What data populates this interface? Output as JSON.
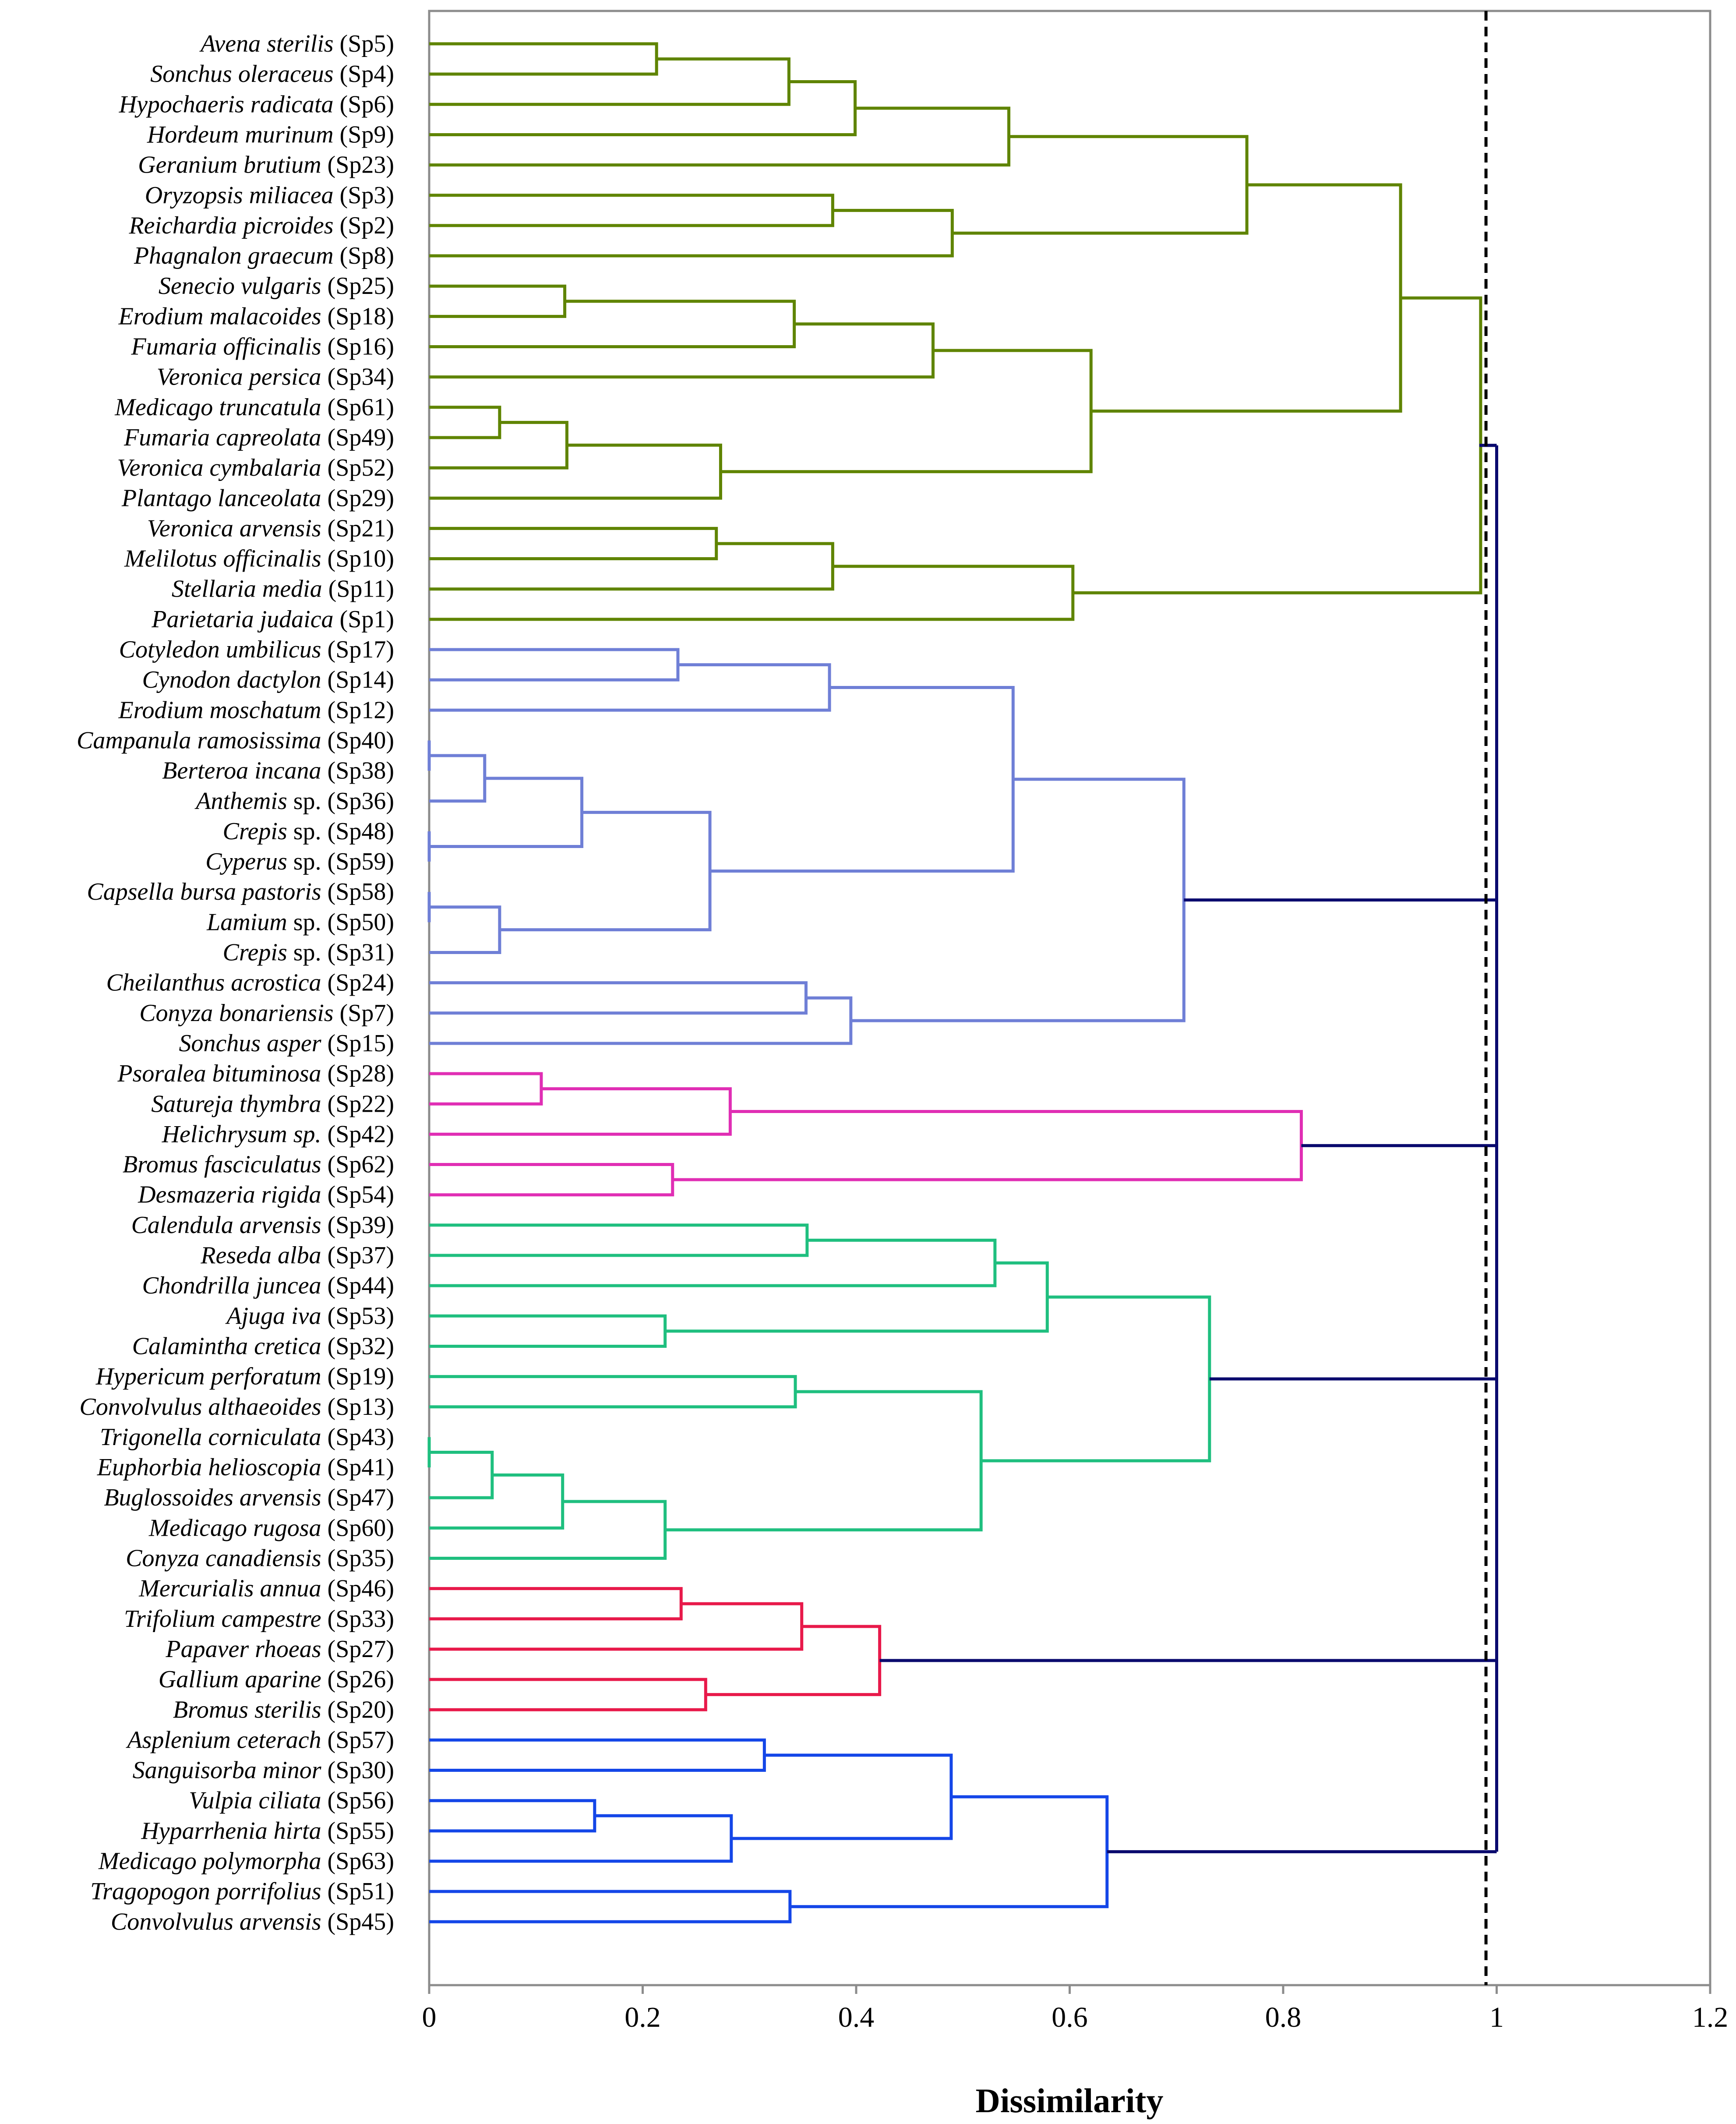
{
  "chart_data": {
    "type": "dendrogram",
    "xlabel": "Dissimilarity",
    "xlim": [
      0,
      1.2
    ],
    "xticks": [
      "0",
      "0.2",
      "0.4",
      "0.6",
      "0.8",
      "1",
      "1.2"
    ],
    "xtick_values": [
      0,
      0.2,
      0.4,
      0.6,
      0.8,
      1.0,
      1.2
    ],
    "cut_line": 0.99,
    "colors": {
      "green": "#5f8400",
      "lavender": "#6f7fd6",
      "magenta": "#e02eb4",
      "teal": "#1fbf7f",
      "red": "#e8194a",
      "blue": "#1446e8",
      "navy": "#0a0a6e",
      "axis": "#8c8c8c"
    },
    "leaves": [
      {
        "name": "Avena sterilis",
        "code": "(Sp5)"
      },
      {
        "name": "Sonchus oleraceus",
        "code": "(Sp4)"
      },
      {
        "name": "Hypochaeris radicata",
        "code": "(Sp6)"
      },
      {
        "name": "Hordeum murinum",
        "code": "(Sp9)"
      },
      {
        "name": "Geranium brutium",
        "code": "(Sp23)"
      },
      {
        "name": "Oryzopsis miliacea",
        "code": "(Sp3)"
      },
      {
        "name": "Reichardia picroides",
        "code": "(Sp2)"
      },
      {
        "name": "Phagnalon graecum",
        "code": "(Sp8)"
      },
      {
        "name": "Senecio vulgaris",
        "code": "(Sp25)"
      },
      {
        "name": "Erodium malacoides",
        "code": "(Sp18)"
      },
      {
        "name": "Fumaria officinalis",
        "code": "(Sp16)"
      },
      {
        "name": "Veronica persica",
        "code": "(Sp34)"
      },
      {
        "name": "Medicago truncatula",
        "code": "(Sp61)"
      },
      {
        "name": "Fumaria capreolata",
        "code": "(Sp49)"
      },
      {
        "name": "Veronica cymbalaria",
        "code": "(Sp52)"
      },
      {
        "name": "Plantago lanceolata",
        "code": "(Sp29)"
      },
      {
        "name": "Veronica arvensis",
        "code": "(Sp21)"
      },
      {
        "name": "Melilotus officinalis",
        "code": "(Sp10)"
      },
      {
        "name": "Stellaria media",
        "code": "(Sp11)"
      },
      {
        "name": "Parietaria judaica",
        "code": "(Sp1)"
      },
      {
        "name": "Cotyledon umbilicus",
        "code": "(Sp17)"
      },
      {
        "name": "Cynodon dactylon",
        "code": "(Sp14)"
      },
      {
        "name": "Erodium moschatum",
        "code": "(Sp12)"
      },
      {
        "name": "Campanula ramosissima",
        "code": "(Sp40)"
      },
      {
        "name": "Berteroa incana",
        "code": "(Sp38)"
      },
      {
        "name": "Anthemis",
        "suffix": " sp.",
        "code": "(Sp36)"
      },
      {
        "name": "Crepis",
        "suffix": " sp.",
        "code": "(Sp48)"
      },
      {
        "name": "Cyperus",
        "suffix": " sp.",
        "code": "(Sp59)"
      },
      {
        "name": "Capsella bursa pastoris",
        "code": "(Sp58)"
      },
      {
        "name": "Lamium",
        "suffix": " sp.",
        "code": "(Sp50)"
      },
      {
        "name": "Crepis",
        "suffix": " sp.",
        "code": "(Sp31)"
      },
      {
        "name": "Cheilanthus acrostica",
        "code": "(Sp24)"
      },
      {
        "name": "Conyza bonariensis",
        "code": "(Sp7)"
      },
      {
        "name": "Sonchus asper",
        "code": "(Sp15)"
      },
      {
        "name": "Psoralea bituminosa",
        "code": "(Sp28)"
      },
      {
        "name": "Satureja thymbra",
        "code": "(Sp22)"
      },
      {
        "name": "Helichrysum sp.",
        "code": "(Sp42)"
      },
      {
        "name": "Bromus fasciculatus",
        "code": "(Sp62)"
      },
      {
        "name": "Desmazeria rigida",
        "code": "(Sp54)"
      },
      {
        "name": "Calendula arvensis",
        "code": "(Sp39)"
      },
      {
        "name": "Reseda alba",
        "code": "(Sp37)"
      },
      {
        "name": "Chondrilla juncea",
        "code": "(Sp44)"
      },
      {
        "name": "Ajuga iva",
        "code": "(Sp53)"
      },
      {
        "name": "Calamintha cretica",
        "code": "(Sp32)"
      },
      {
        "name": "Hypericum perforatum",
        "code": "(Sp19)"
      },
      {
        "name": "Convolvulus althaeoides",
        "code": "(Sp13)"
      },
      {
        "name": "Trigonella corniculata",
        "code": "(Sp43)"
      },
      {
        "name": "Euphorbia helioscopia",
        "code": "(Sp41)"
      },
      {
        "name": "Buglossoides arvensis",
        "code": "(Sp47)"
      },
      {
        "name": "Medicago rugosa",
        "code": "(Sp60)"
      },
      {
        "name": "Conyza canadiensis",
        "code": "(Sp35)"
      },
      {
        "name": "Mercurialis annua",
        "code": "(Sp46)"
      },
      {
        "name": "Trifolium campestre",
        "code": "(Sp33)"
      },
      {
        "name": "Papaver rhoeas",
        "code": "(Sp27)"
      },
      {
        "name": "Gallium aparine",
        "code": "(Sp26)"
      },
      {
        "name": "Bromus sterilis",
        "code": "(Sp20)"
      },
      {
        "name": "Asplenium ceterach",
        "code": "(Sp57)"
      },
      {
        "name": "Sanguisorba minor",
        "code": "(Sp30)"
      },
      {
        "name": "Vulpia ciliata",
        "code": "(Sp56)"
      },
      {
        "name": "Hyparrhenia hirta",
        "code": "(Sp55)"
      },
      {
        "name": "Medicago polymorpha",
        "code": "(Sp63)"
      },
      {
        "name": "Tragopogon porrifolius",
        "code": "(Sp51)"
      },
      {
        "name": "Convolvulus arvensis",
        "code": "(Sp45)"
      }
    ],
    "merges": [
      {
        "id": "g1",
        "children": [
          0,
          1
        ],
        "height": 0.213,
        "color": "green"
      },
      {
        "id": "g2",
        "children": [
          "g1",
          2
        ],
        "height": 0.337,
        "color": "green"
      },
      {
        "id": "g3",
        "children": [
          "g2",
          3
        ],
        "height": 0.399,
        "color": "green"
      },
      {
        "id": "g4",
        "children": [
          "g3",
          4
        ],
        "height": 0.543,
        "color": "green"
      },
      {
        "id": "g5",
        "children": [
          5,
          6
        ],
        "height": 0.378,
        "color": "green"
      },
      {
        "id": "g6",
        "children": [
          "g5",
          7
        ],
        "height": 0.49,
        "color": "green"
      },
      {
        "id": "g7",
        "children": [
          "g4",
          "g6"
        ],
        "height": 0.766,
        "color": "green"
      },
      {
        "id": "g8",
        "children": [
          8,
          9
        ],
        "height": 0.127,
        "color": "green"
      },
      {
        "id": "g9",
        "children": [
          "g8",
          10
        ],
        "height": 0.342,
        "color": "green"
      },
      {
        "id": "g10",
        "children": [
          "g9",
          11
        ],
        "height": 0.472,
        "color": "green"
      },
      {
        "id": "g11",
        "children": [
          12,
          13
        ],
        "height": 0.066,
        "color": "green"
      },
      {
        "id": "g12",
        "children": [
          "g11",
          14
        ],
        "height": 0.129,
        "color": "green"
      },
      {
        "id": "g13",
        "children": [
          "g12",
          15
        ],
        "height": 0.273,
        "color": "green"
      },
      {
        "id": "g14",
        "children": [
          "g10",
          "g13"
        ],
        "height": 0.62,
        "color": "green"
      },
      {
        "id": "g15",
        "children": [
          "g7",
          "g14"
        ],
        "height": 0.91,
        "color": "green"
      },
      {
        "id": "g16",
        "children": [
          16,
          17
        ],
        "height": 0.269,
        "color": "green"
      },
      {
        "id": "g17",
        "children": [
          "g16",
          18
        ],
        "height": 0.378,
        "color": "green"
      },
      {
        "id": "g18",
        "children": [
          "g17",
          19
        ],
        "height": 0.603,
        "color": "green"
      },
      {
        "id": "g19",
        "children": [
          "g15",
          "g18"
        ],
        "height": 0.985,
        "color": "green"
      },
      {
        "id": "b1",
        "children": [
          20,
          21
        ],
        "height": 0.233,
        "color": "lavender"
      },
      {
        "id": "b2",
        "children": [
          "b1",
          22
        ],
        "height": 0.375,
        "color": "lavender"
      },
      {
        "id": "b3",
        "children": [
          23,
          24
        ],
        "height": 0.0,
        "color": "lavender"
      },
      {
        "id": "b4",
        "children": [
          "b3",
          25
        ],
        "height": 0.052,
        "color": "lavender"
      },
      {
        "id": "b5",
        "children": [
          26,
          27
        ],
        "height": 0.0,
        "color": "lavender"
      },
      {
        "id": "b6",
        "children": [
          "b4",
          "b5"
        ],
        "height": 0.143,
        "color": "lavender"
      },
      {
        "id": "b7",
        "children": [
          28,
          29
        ],
        "height": 0.0,
        "color": "lavender"
      },
      {
        "id": "b8",
        "children": [
          "b7",
          30
        ],
        "height": 0.066,
        "color": "lavender"
      },
      {
        "id": "b9",
        "children": [
          "b6",
          "b8"
        ],
        "height": 0.263,
        "color": "lavender"
      },
      {
        "id": "b10",
        "children": [
          "b2",
          "b9"
        ],
        "height": 0.547,
        "color": "lavender"
      },
      {
        "id": "b11",
        "children": [
          31,
          32
        ],
        "height": 0.353,
        "color": "lavender"
      },
      {
        "id": "b12",
        "children": [
          "b11",
          33
        ],
        "height": 0.395,
        "color": "lavender"
      },
      {
        "id": "b13",
        "children": [
          "b10",
          "b12"
        ],
        "height": 0.707,
        "color": "lavender"
      },
      {
        "id": "m1",
        "children": [
          34,
          35
        ],
        "height": 0.105,
        "color": "magenta"
      },
      {
        "id": "m2",
        "children": [
          "m1",
          36
        ],
        "height": 0.282,
        "color": "magenta"
      },
      {
        "id": "m3",
        "children": [
          37,
          38
        ],
        "height": 0.228,
        "color": "magenta"
      },
      {
        "id": "m4",
        "children": [
          "m2",
          "m3"
        ],
        "height": 0.817,
        "color": "magenta"
      },
      {
        "id": "t1",
        "children": [
          39,
          40
        ],
        "height": 0.354,
        "color": "teal"
      },
      {
        "id": "t2",
        "children": [
          "t1",
          41
        ],
        "height": 0.53,
        "color": "teal"
      },
      {
        "id": "t3",
        "children": [
          42,
          43
        ],
        "height": 0.221,
        "color": "teal"
      },
      {
        "id": "t4",
        "children": [
          "t2",
          "t3"
        ],
        "height": 0.579,
        "color": "teal"
      },
      {
        "id": "t5",
        "children": [
          44,
          45
        ],
        "height": 0.343,
        "color": "teal"
      },
      {
        "id": "t6",
        "children": [
          46,
          47
        ],
        "height": 0.0,
        "color": "teal"
      },
      {
        "id": "t7",
        "children": [
          "t6",
          48
        ],
        "height": 0.059,
        "color": "teal"
      },
      {
        "id": "t8",
        "children": [
          "t7",
          49
        ],
        "height": 0.125,
        "color": "teal"
      },
      {
        "id": "t9",
        "children": [
          "t8",
          50
        ],
        "height": 0.221,
        "color": "teal"
      },
      {
        "id": "t10",
        "children": [
          "t5",
          "t9"
        ],
        "height": 0.517,
        "color": "teal"
      },
      {
        "id": "t11",
        "children": [
          "t4",
          "t10"
        ],
        "height": 0.731,
        "color": "teal"
      },
      {
        "id": "r1",
        "children": [
          51,
          52
        ],
        "height": 0.236,
        "color": "red"
      },
      {
        "id": "r2",
        "children": [
          "r1",
          53
        ],
        "height": 0.349,
        "color": "red"
      },
      {
        "id": "r3",
        "children": [
          54,
          55
        ],
        "height": 0.259,
        "color": "red"
      },
      {
        "id": "r4",
        "children": [
          "r2",
          "r3"
        ],
        "height": 0.422,
        "color": "red"
      },
      {
        "id": "u1",
        "children": [
          56,
          57
        ],
        "height": 0.314,
        "color": "blue"
      },
      {
        "id": "u2",
        "children": [
          58,
          59
        ],
        "height": 0.155,
        "color": "blue"
      },
      {
        "id": "u3",
        "children": [
          "u2",
          60
        ],
        "height": 0.283,
        "color": "blue"
      },
      {
        "id": "u4",
        "children": [
          "u1",
          "u3"
        ],
        "height": 0.489,
        "color": "blue"
      },
      {
        "id": "u5",
        "children": [
          61,
          62
        ],
        "height": 0.338,
        "color": "blue"
      },
      {
        "id": "u6",
        "children": [
          "u4",
          "u5"
        ],
        "height": 0.635,
        "color": "blue"
      }
    ],
    "root": {
      "height": 1.0,
      "color": "navy",
      "clusters": [
        "g19",
        "b13",
        "m4",
        "t11",
        "r4",
        "u6"
      ]
    }
  }
}
